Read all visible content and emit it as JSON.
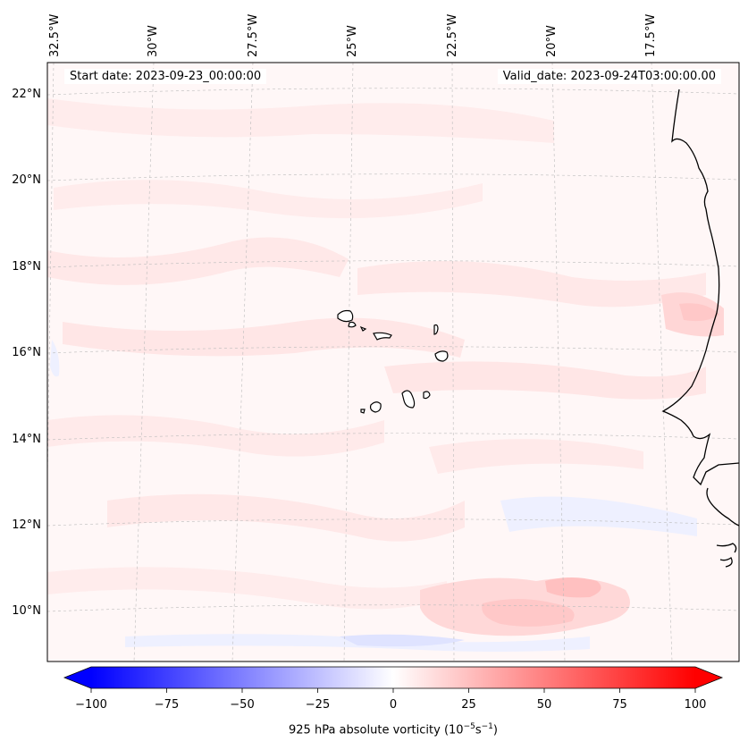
{
  "map": {
    "start_date": "Start date: 2023-09-23_00:00:00",
    "valid_date": "Valid_date: 2023-09-24T03:00:00.00",
    "lon_labels": [
      "32.5°W",
      "30°W",
      "27.5°W",
      "25°W",
      "22.5°W",
      "20°W",
      "17.5°W"
    ],
    "lat_labels": [
      "22°N",
      "20°N",
      "18°N",
      "16°N",
      "14°N",
      "12°N",
      "10°N"
    ],
    "features": [
      "Cabo Verde islands",
      "West African coastline"
    ]
  },
  "colorbar": {
    "label_prefix": "925 hPa absolute vorticity (10",
    "label_exp1": "−5",
    "label_mid": "s",
    "label_exp2": "−1",
    "label_suffix": ")",
    "ticks": [
      "−100",
      "−75",
      "−50",
      "−25",
      "0",
      "25",
      "50",
      "75",
      "100"
    ],
    "min": -100,
    "max": 100,
    "colormap": "bwr",
    "low_color": "#0000ff",
    "mid_color": "#ffffff",
    "high_color": "#ff0000"
  },
  "colors": {
    "ocean_background": "#fff7f7",
    "positive_light": "#ffe8e8",
    "positive_mid": "#ffd6d6",
    "negative_light": "#eef0ff",
    "coast": "#000000",
    "grid": "#bbbbbb"
  }
}
